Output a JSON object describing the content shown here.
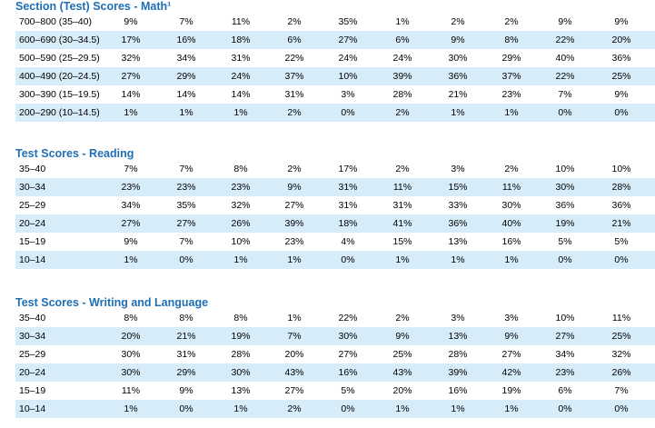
{
  "sections": [
    {
      "title": "Section (Test) Scores - Math¹",
      "rows": [
        {
          "label": "700–800 (35–40)",
          "values": [
            "9%",
            "7%",
            "11%",
            "2%",
            "35%",
            "1%",
            "2%",
            "2%",
            "9%",
            "9%"
          ]
        },
        {
          "label": "600–690 (30–34.5)",
          "values": [
            "17%",
            "16%",
            "18%",
            "6%",
            "27%",
            "6%",
            "9%",
            "8%",
            "22%",
            "20%"
          ]
        },
        {
          "label": "500–590 (25–29.5)",
          "values": [
            "32%",
            "34%",
            "31%",
            "22%",
            "24%",
            "24%",
            "30%",
            "29%",
            "40%",
            "36%"
          ]
        },
        {
          "label": "400–490 (20–24.5)",
          "values": [
            "27%",
            "29%",
            "24%",
            "37%",
            "10%",
            "39%",
            "36%",
            "37%",
            "22%",
            "25%"
          ]
        },
        {
          "label": "300–390 (15–19.5)",
          "values": [
            "14%",
            "14%",
            "14%",
            "31%",
            "3%",
            "28%",
            "21%",
            "23%",
            "7%",
            "9%"
          ]
        },
        {
          "label": "200–290 (10–14.5)",
          "values": [
            "1%",
            "1%",
            "1%",
            "2%",
            "0%",
            "2%",
            "1%",
            "1%",
            "0%",
            "0%"
          ]
        }
      ]
    },
    {
      "title": "Test Scores - Reading",
      "rows": [
        {
          "label": "35–40",
          "values": [
            "7%",
            "7%",
            "8%",
            "2%",
            "17%",
            "2%",
            "3%",
            "2%",
            "10%",
            "10%"
          ]
        },
        {
          "label": "30–34",
          "values": [
            "23%",
            "23%",
            "23%",
            "9%",
            "31%",
            "11%",
            "15%",
            "11%",
            "30%",
            "28%"
          ]
        },
        {
          "label": "25–29",
          "values": [
            "34%",
            "35%",
            "32%",
            "27%",
            "31%",
            "31%",
            "33%",
            "30%",
            "36%",
            "36%"
          ]
        },
        {
          "label": "20–24",
          "values": [
            "27%",
            "27%",
            "26%",
            "39%",
            "18%",
            "41%",
            "36%",
            "40%",
            "19%",
            "21%"
          ]
        },
        {
          "label": "15–19",
          "values": [
            "9%",
            "7%",
            "10%",
            "23%",
            "4%",
            "15%",
            "13%",
            "16%",
            "5%",
            "5%"
          ]
        },
        {
          "label": "10–14",
          "values": [
            "1%",
            "0%",
            "1%",
            "1%",
            "0%",
            "1%",
            "1%",
            "1%",
            "0%",
            "0%"
          ]
        }
      ]
    },
    {
      "title": "Test Scores - Writing and Language",
      "rows": [
        {
          "label": "35–40",
          "values": [
            "8%",
            "8%",
            "8%",
            "1%",
            "22%",
            "2%",
            "3%",
            "3%",
            "10%",
            "11%"
          ]
        },
        {
          "label": "30–34",
          "values": [
            "20%",
            "21%",
            "19%",
            "7%",
            "30%",
            "9%",
            "13%",
            "9%",
            "27%",
            "25%"
          ]
        },
        {
          "label": "25–29",
          "values": [
            "30%",
            "31%",
            "28%",
            "20%",
            "27%",
            "25%",
            "28%",
            "27%",
            "34%",
            "32%"
          ]
        },
        {
          "label": "20–24",
          "values": [
            "30%",
            "29%",
            "30%",
            "43%",
            "16%",
            "43%",
            "39%",
            "42%",
            "23%",
            "26%"
          ]
        },
        {
          "label": "15–19",
          "values": [
            "11%",
            "9%",
            "13%",
            "27%",
            "5%",
            "20%",
            "16%",
            "19%",
            "6%",
            "7%"
          ]
        },
        {
          "label": "10–14",
          "values": [
            "1%",
            "0%",
            "1%",
            "2%",
            "0%",
            "1%",
            "1%",
            "1%",
            "0%",
            "0%"
          ]
        }
      ]
    }
  ]
}
